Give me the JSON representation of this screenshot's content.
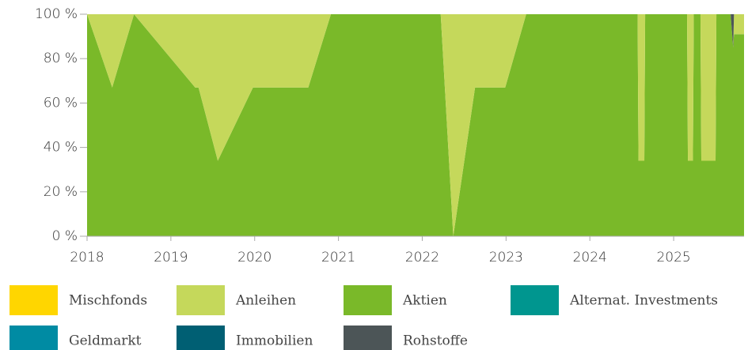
{
  "chart_data": {
    "type": "stacked_area",
    "x": [
      2018.0,
      2018.3,
      2018.56,
      2019.29,
      2019.33,
      2019.56,
      2019.98,
      2020.64,
      2020.91,
      2022.22,
      2022.37,
      2022.63,
      2022.99,
      2023.24,
      2024.57,
      2024.58,
      2024.65,
      2024.66,
      2025.16,
      2025.17,
      2025.23,
      2025.24,
      2025.32,
      2025.33,
      2025.5,
      2025.51,
      2025.68,
      2025.71,
      2025.72,
      2025.84
    ],
    "series": [
      {
        "name": "Mischfonds",
        "color": "#ffd600",
        "values": [
          0,
          0,
          0,
          0,
          0,
          0,
          0,
          0,
          0,
          0,
          0,
          0,
          0,
          0,
          0,
          0,
          0,
          0,
          0,
          0,
          0,
          0,
          0,
          0,
          0,
          0,
          0,
          0,
          0,
          0
        ]
      },
      {
        "name": "Anleihen",
        "color": "#c5d85b",
        "values": [
          0,
          33,
          0,
          33,
          33,
          66,
          33,
          33,
          0,
          0,
          100,
          33,
          33,
          0,
          0,
          66,
          66,
          0,
          0,
          66,
          66,
          0,
          0,
          66,
          66,
          0,
          0,
          0,
          9,
          9
        ]
      },
      {
        "name": "Aktien",
        "color": "#7ab929",
        "values": [
          100,
          67,
          100,
          67,
          67,
          34,
          67,
          67,
          100,
          100,
          0,
          67,
          67,
          100,
          100,
          34,
          34,
          100,
          100,
          34,
          34,
          100,
          100,
          34,
          34,
          100,
          100,
          85,
          91,
          91
        ]
      },
      {
        "name": "Alternat. Investments",
        "color": "#00968f",
        "values": [
          0,
          0,
          0,
          0,
          0,
          0,
          0,
          0,
          0,
          0,
          0,
          0,
          0,
          0,
          0,
          0,
          0,
          0,
          0,
          0,
          0,
          0,
          0,
          0,
          0,
          0,
          0,
          0,
          0,
          0
        ]
      },
      {
        "name": "Geldmarkt",
        "color": "#008ba3",
        "values": [
          0,
          0,
          0,
          0,
          0,
          0,
          0,
          0,
          0,
          0,
          0,
          0,
          0,
          0,
          0,
          0,
          0,
          0,
          0,
          0,
          0,
          0,
          0,
          0,
          0,
          0,
          0,
          0,
          0,
          0
        ]
      },
      {
        "name": "Immobilien",
        "color": "#005f73",
        "values": [
          0,
          0,
          0,
          0,
          0,
          0,
          0,
          0,
          0,
          0,
          0,
          0,
          0,
          0,
          0,
          0,
          0,
          0,
          0,
          0,
          0,
          0,
          0,
          0,
          0,
          0,
          0,
          0,
          0,
          0
        ]
      },
      {
        "name": "Rohstoffe",
        "color": "#4c5557",
        "values": [
          0,
          0,
          0,
          0,
          0,
          0,
          0,
          0,
          0,
          0,
          0,
          0,
          0,
          0,
          0,
          0,
          0,
          0,
          0,
          0,
          0,
          0,
          0,
          0,
          0,
          0,
          0,
          15,
          0,
          0
        ]
      }
    ],
    "xlim": [
      2018,
      2025.84
    ],
    "xticks": [
      2018,
      2019,
      2020,
      2021,
      2022,
      2023,
      2024,
      2025
    ],
    "ylim": [
      0,
      100
    ],
    "yticks": [
      {
        "value": 0,
        "label": "0 %"
      },
      {
        "value": 20,
        "label": "20 %"
      },
      {
        "value": 40,
        "label": "40 %"
      },
      {
        "value": 60,
        "label": "60 %"
      },
      {
        "value": 80,
        "label": "80 %"
      },
      {
        "value": 100,
        "label": "100 %"
      }
    ]
  }
}
